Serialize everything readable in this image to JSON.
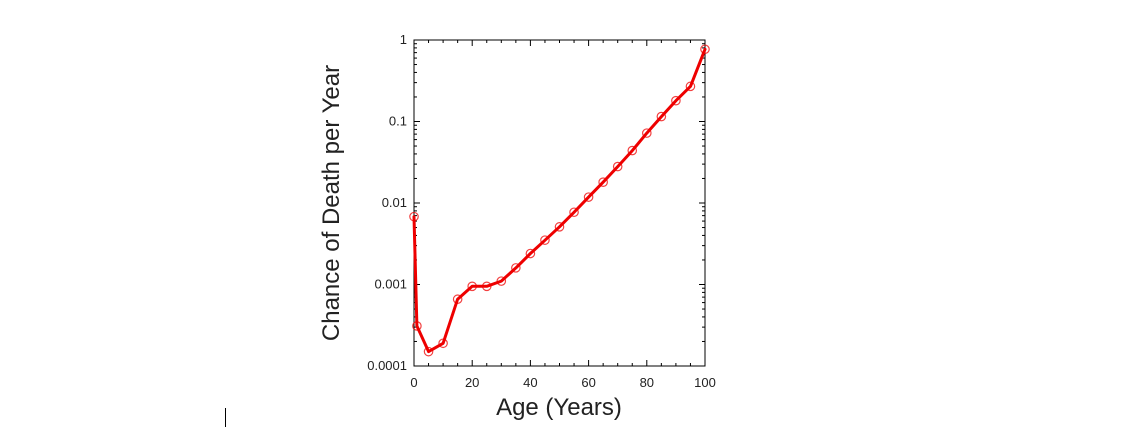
{
  "chart_data": {
    "type": "line",
    "title": "",
    "xlabel": "Age (Years)",
    "ylabel": "Chance of Death per Year",
    "xlim": [
      0,
      100
    ],
    "ylim": [
      0.0001,
      1
    ],
    "yscale": "log",
    "grid": false,
    "legend": "none",
    "line_color": "#ee0000",
    "marker": "open-circle",
    "x_ticks": [
      {
        "value": 0,
        "label": "0"
      },
      {
        "value": 20,
        "label": "20"
      },
      {
        "value": 40,
        "label": "40"
      },
      {
        "value": 60,
        "label": "60"
      },
      {
        "value": 80,
        "label": "80"
      },
      {
        "value": 100,
        "label": "100"
      }
    ],
    "y_ticks": [
      {
        "value": 0.0001,
        "label": "0.0001"
      },
      {
        "value": 0.001,
        "label": "0.001"
      },
      {
        "value": 0.01,
        "label": "0.01"
      },
      {
        "value": 0.1,
        "label": "0.1"
      },
      {
        "value": 1,
        "label": "1"
      }
    ],
    "series": [
      {
        "x": [
          0,
          1,
          5,
          10,
          15,
          20,
          25,
          30,
          35,
          40,
          45,
          50,
          55,
          60,
          65,
          70,
          75,
          80,
          85,
          90,
          95,
          100
        ],
        "y": [
          0.0068,
          0.00031,
          0.00015,
          0.00019,
          0.00066,
          0.00095,
          0.00095,
          0.0011,
          0.0016,
          0.0024,
          0.0035,
          0.0051,
          0.0077,
          0.0118,
          0.018,
          0.028,
          0.044,
          0.072,
          0.115,
          0.18,
          0.27,
          0.77
        ]
      }
    ]
  }
}
